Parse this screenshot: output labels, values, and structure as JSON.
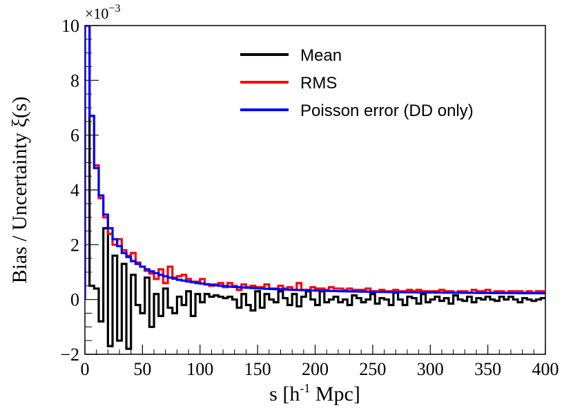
{
  "chart_data": {
    "type": "line",
    "style": "histogram-step",
    "xlabel": "s [h",
    "xlabel_sup": "-1",
    "xlabel_tail": " Mpc]",
    "ylabel": "Bias / Uncertainty ξ(s)",
    "y_exponent_prefix": "×10",
    "y_exponent_power": "−3",
    "xlim": [
      0,
      400
    ],
    "ylim": [
      -2,
      10
    ],
    "bin_width": 4,
    "x_ticks": [
      "0",
      "50",
      "100",
      "150",
      "200",
      "250",
      "300",
      "350",
      "400"
    ],
    "y_ticks": [
      "−2",
      "0",
      "2",
      "4",
      "6",
      "8",
      "10"
    ],
    "x_tick_values": [
      0,
      50,
      100,
      150,
      200,
      250,
      300,
      350,
      400
    ],
    "y_tick_values": [
      -2,
      0,
      2,
      4,
      6,
      8,
      10
    ],
    "legend_position": "top-right",
    "series": [
      {
        "name": "Mean",
        "color": "#000000",
        "values": [
          10.0,
          0.5,
          0.4,
          -0.8,
          2.6,
          -1.7,
          1.6,
          -1.5,
          1.3,
          -1.8,
          0.9,
          -0.2,
          -0.5,
          0.8,
          -1.0,
          0.2,
          -0.6,
          0.4,
          -0.3,
          -0.5,
          0.1,
          -0.2,
          0.3,
          -0.6,
          0.2,
          -0.1,
          0.2,
          0.1,
          0.15,
          0.1,
          0.05,
          0.1,
          0.0,
          -0.3,
          0.2,
          -0.2,
          -0.4,
          0.3,
          -0.3,
          0.2,
          0.0,
          -0.1,
          0.3,
          0.05,
          -0.2,
          0.2,
          -0.25,
          0.1,
          0.3,
          0.0,
          -0.2,
          0.3,
          -0.1,
          0.0,
          0.1,
          -0.1,
          0.0,
          -0.2,
          0.15,
          0.05,
          -0.1,
          0.0,
          0.2,
          -0.15,
          0.05,
          0.0,
          -0.2,
          0.25,
          0.0,
          -0.2,
          0.1,
          0.05,
          -0.15,
          0.2,
          -0.1,
          0.0,
          0.1,
          -0.05,
          0.05,
          -0.15,
          0.15,
          0.0,
          -0.05,
          0.1,
          -0.1,
          0.05,
          0.0,
          0.1,
          0.0,
          -0.05,
          0.1,
          0.0,
          0.1,
          0.0,
          -0.1,
          0.05,
          0.0,
          -0.05,
          0.0,
          0.05
        ]
      },
      {
        "name": "RMS",
        "color": "#ff0000",
        "values": [
          10.0,
          6.7,
          4.9,
          3.7,
          3.0,
          2.4,
          2.0,
          2.2,
          1.8,
          1.6,
          1.7,
          1.35,
          1.2,
          1.05,
          0.95,
          0.75,
          1.1,
          0.6,
          1.2,
          0.8,
          0.85,
          0.9,
          0.75,
          0.65,
          0.65,
          0.75,
          0.55,
          0.5,
          0.55,
          0.6,
          0.45,
          0.6,
          0.5,
          0.35,
          0.55,
          0.45,
          0.5,
          0.45,
          0.45,
          0.55,
          0.4,
          0.4,
          0.5,
          0.4,
          0.45,
          0.35,
          0.6,
          0.35,
          0.35,
          0.45,
          0.4,
          0.4,
          0.35,
          0.45,
          0.4,
          0.4,
          0.35,
          0.4,
          0.35,
          0.35,
          0.35,
          0.4,
          0.3,
          0.3,
          0.35,
          0.3,
          0.3,
          0.35,
          0.3,
          0.3,
          0.35,
          0.3,
          0.35,
          0.3,
          0.3,
          0.3,
          0.3,
          0.35,
          0.3,
          0.3,
          0.25,
          0.3,
          0.3,
          0.25,
          0.35,
          0.3,
          0.3,
          0.35,
          0.25,
          0.3,
          0.3,
          0.25,
          0.3,
          0.3,
          0.3,
          0.25,
          0.3,
          0.25,
          0.3,
          0.3
        ]
      },
      {
        "name": "Poisson error (DD only)",
        "color": "#0000ff",
        "values": [
          10.0,
          6.7,
          4.8,
          3.8,
          3.1,
          2.6,
          2.2,
          1.95,
          1.7,
          1.55,
          1.4,
          1.3,
          1.2,
          1.1,
          1.03,
          0.96,
          0.9,
          0.85,
          0.8,
          0.76,
          0.72,
          0.69,
          0.66,
          0.63,
          0.6,
          0.58,
          0.56,
          0.54,
          0.52,
          0.5,
          0.49,
          0.47,
          0.46,
          0.45,
          0.44,
          0.43,
          0.42,
          0.41,
          0.4,
          0.39,
          0.385,
          0.38,
          0.372,
          0.365,
          0.358,
          0.352,
          0.346,
          0.34,
          0.335,
          0.33,
          0.325,
          0.32,
          0.316,
          0.312,
          0.308,
          0.304,
          0.3,
          0.297,
          0.294,
          0.291,
          0.288,
          0.285,
          0.282,
          0.28,
          0.277,
          0.275,
          0.272,
          0.27,
          0.268,
          0.266,
          0.264,
          0.262,
          0.26,
          0.258,
          0.256,
          0.255,
          0.253,
          0.252,
          0.25,
          0.249,
          0.247,
          0.246,
          0.245,
          0.243,
          0.242,
          0.241,
          0.24,
          0.239,
          0.238,
          0.237,
          0.236,
          0.235,
          0.234,
          0.233,
          0.232,
          0.231,
          0.23,
          0.23,
          0.229,
          0.228
        ]
      }
    ]
  }
}
